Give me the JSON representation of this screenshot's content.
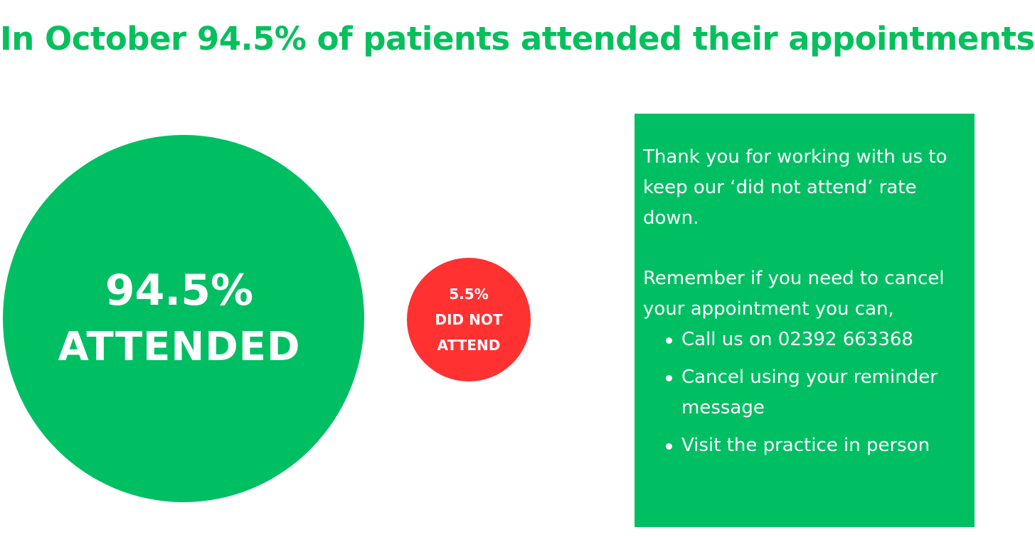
{
  "headline": "In October 94.5% of patients attended their appointments",
  "attended": {
    "percent_label": "94.5%",
    "label": "ATTENDED",
    "value": 94.5
  },
  "did_not_attend": {
    "percent_label": "5.5%",
    "line1": "DID NOT",
    "line2": "ATTEND",
    "value": 5.5
  },
  "info_box": {
    "intro": "Thank you for working with us to keep our ‘did not attend’ rate down.",
    "remember": "Remember if you need to cancel your appointment you can,",
    "options": [
      "Call us on 02392 663368",
      "Cancel using your reminder message",
      "Visit the practice in person"
    ]
  },
  "colors": {
    "headline_green": "#05c05c",
    "attended_green": "#00bf63",
    "did_not_attend_red": "#ff3131",
    "box_green": "#00bf63",
    "text_white": "#ffffff"
  }
}
